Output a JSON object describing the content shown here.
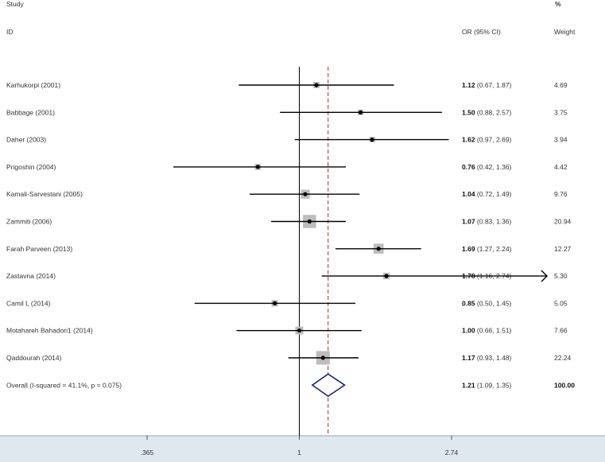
{
  "chart_data": {
    "type": "forest",
    "headers": {
      "study_line1": "Study",
      "study_line2": "ID",
      "or_label": "OR (95% CI)",
      "pct_label": "%",
      "weight_label": "Weight"
    },
    "studies": [
      {
        "name": "Karhukorpi (2001)",
        "or": 1.12,
        "lo": 0.67,
        "hi": 1.87,
        "or_text": "1.12",
        "ci_text": "(0.67, 1.87)",
        "weight": "4.69"
      },
      {
        "name": "Babbage (2001)",
        "or": 1.5,
        "lo": 0.88,
        "hi": 2.57,
        "or_text": "1.50",
        "ci_text": "(0.88, 2.57)",
        "weight": "3.75"
      },
      {
        "name": "Daher (2003)",
        "or": 1.62,
        "lo": 0.97,
        "hi": 2.69,
        "or_text": "1.62",
        "ci_text": "(0.97, 2.69)",
        "weight": "3.94"
      },
      {
        "name": "Prigoshin (2004)",
        "or": 0.76,
        "lo": 0.42,
        "hi": 1.36,
        "or_text": "0.76",
        "ci_text": "(0.42, 1.36)",
        "weight": "4.42"
      },
      {
        "name": "Kamali-Sarvestani (2005)",
        "or": 1.04,
        "lo": 0.72,
        "hi": 1.49,
        "or_text": "1.04",
        "ci_text": "(0.72, 1.49)",
        "weight": "9.76"
      },
      {
        "name": "Zammiti (2006)",
        "or": 1.07,
        "lo": 0.83,
        "hi": 1.36,
        "or_text": "1.07",
        "ci_text": "(0.83, 1.36)",
        "weight": "20.94"
      },
      {
        "name": "Farah Parveen (2013)",
        "or": 1.69,
        "lo": 1.27,
        "hi": 2.24,
        "or_text": "1.69",
        "ci_text": "(1.27, 2.24)",
        "weight": "12.27"
      },
      {
        "name": "Zastavna (2014)",
        "or": 1.78,
        "lo": 1.16,
        "hi": 2.74,
        "or_text": "1.78",
        "ci_text": "(1.16, 2.74)",
        "weight": "5.30",
        "arrow_right": true
      },
      {
        "name": "Camil L (2014)",
        "or": 0.85,
        "lo": 0.5,
        "hi": 1.45,
        "or_text": "0.85",
        "ci_text": "(0.50, 1.45)",
        "weight": "5.05"
      },
      {
        "name": "Motahareh Bahadori1 (2014)",
        "or": 1.0,
        "lo": 0.66,
        "hi": 1.51,
        "or_text": "1.00",
        "ci_text": "(0.66, 1.51)",
        "weight": "7.66"
      },
      {
        "name": "Qaddourah (2014)",
        "or": 1.17,
        "lo": 0.93,
        "hi": 1.48,
        "or_text": "1.17",
        "ci_text": "(0.93, 1.48)",
        "weight": "22.24"
      }
    ],
    "overall": {
      "label": "Overall  (I-squared = 41.1%, p = 0.075)",
      "or": 1.21,
      "lo": 1.09,
      "hi": 1.35,
      "or_text": "1.21",
      "ci_text": "(1.09, 1.35)",
      "weight": "100.00"
    },
    "x_scale": "log",
    "x_ticks": [
      {
        "value": 0.365,
        "label": ".365"
      },
      {
        "value": 1,
        "label": "1"
      },
      {
        "value": 2.74,
        "label": "2.74"
      }
    ],
    "xlim": [
      0.365,
      2.74
    ],
    "reference_line": 1,
    "pooled_line": 1.21
  },
  "colors": {
    "axis_band": "#dfe8ef",
    "marker_box": "#bdbdbd",
    "ci_line": "#000000",
    "diamond": "#1a2a7a",
    "pooled_line": "#a0303a",
    "reference_line": "#000000"
  }
}
